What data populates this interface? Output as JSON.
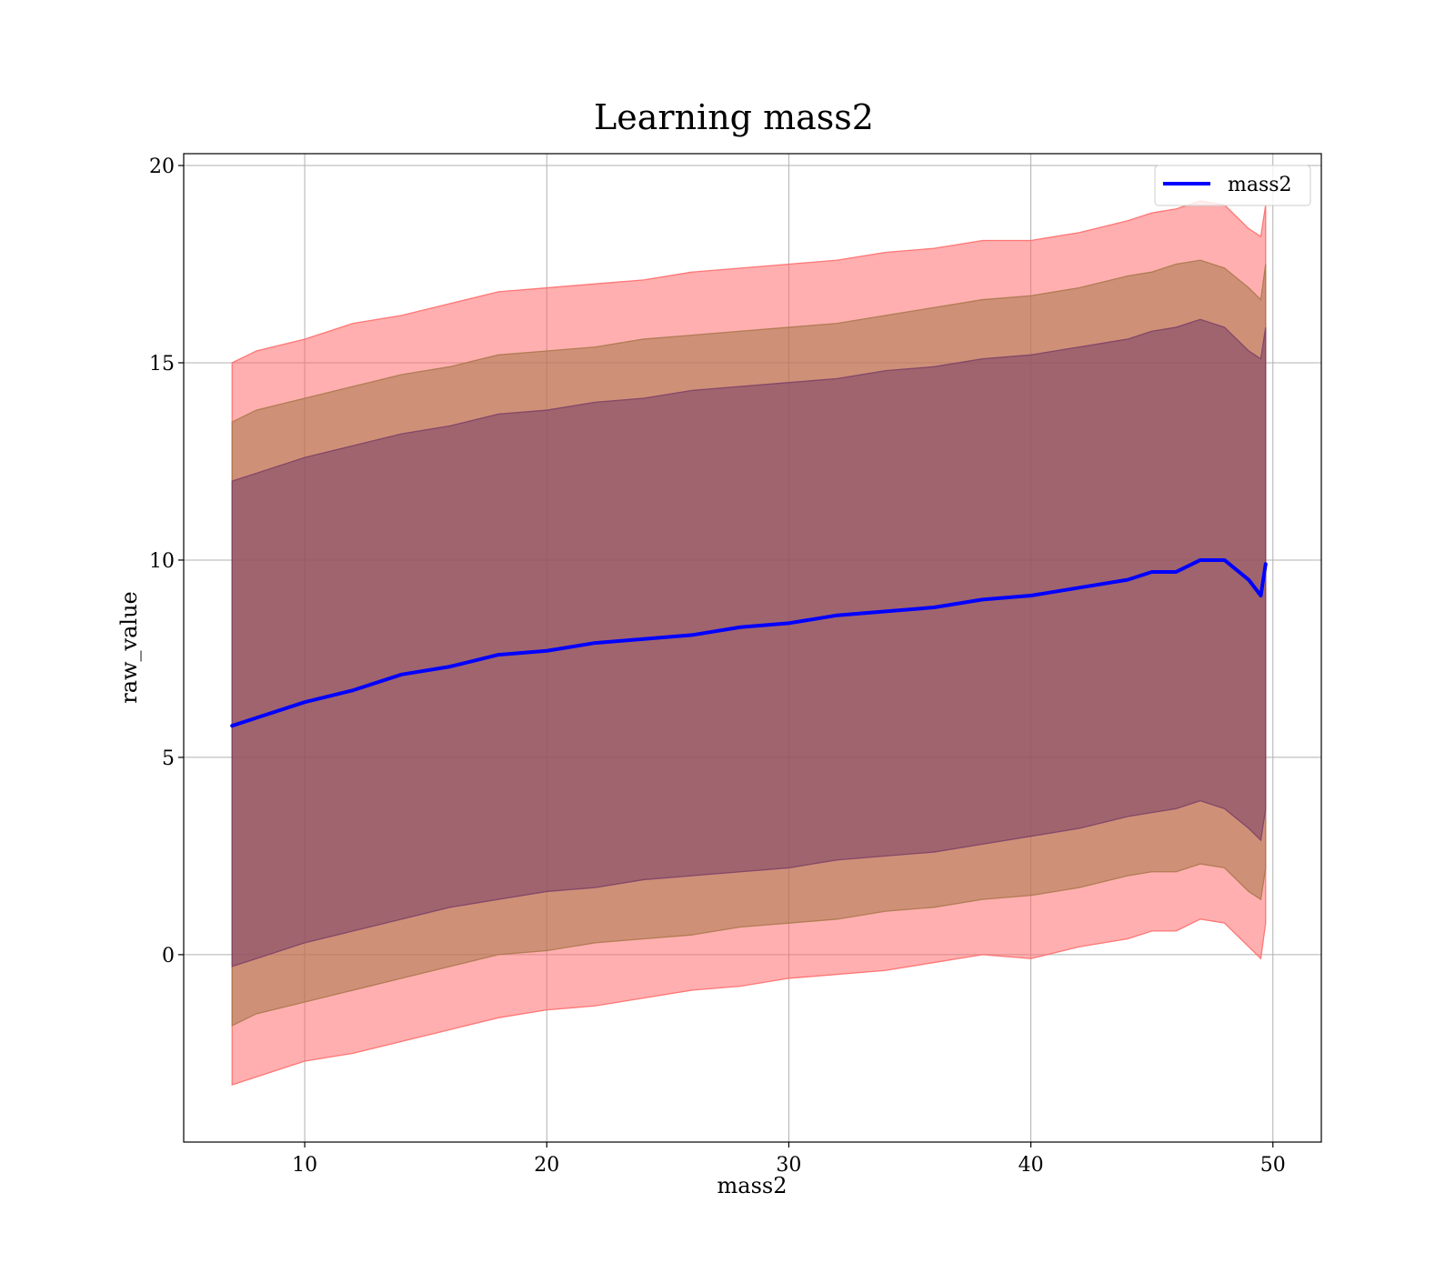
{
  "chart_data": {
    "type": "area",
    "title": "Learning mass2",
    "xlabel": "mass2",
    "ylabel": "raw_value",
    "xlim": [
      5,
      52
    ],
    "ylim": [
      -4.75,
      20.3
    ],
    "xticks": [
      10,
      20,
      30,
      40,
      50
    ],
    "yticks": [
      0,
      5,
      10,
      15,
      20
    ],
    "grid": true,
    "legend_position": "upper right",
    "x": [
      7.0,
      8.0,
      10.0,
      12.0,
      14.0,
      16.0,
      18.0,
      20.0,
      22.0,
      24.0,
      26.0,
      28.0,
      30.0,
      32.0,
      34.0,
      36.0,
      38.0,
      40.0,
      42.0,
      44.0,
      45.0,
      46.0,
      47.0,
      48.0,
      49.0,
      49.5,
      49.7
    ],
    "series": [
      {
        "name": "mass2",
        "color": "#0000ff",
        "values": [
          5.8,
          6.0,
          6.4,
          6.7,
          7.1,
          7.3,
          7.6,
          7.7,
          7.9,
          8.0,
          8.1,
          8.3,
          8.4,
          8.6,
          8.7,
          8.8,
          9.0,
          9.1,
          9.3,
          9.5,
          9.7,
          9.7,
          10.0,
          10.0,
          9.5,
          9.1,
          9.9
        ]
      }
    ],
    "bands": [
      {
        "label": "",
        "color": "#ff6666",
        "upper": [
          15.0,
          15.3,
          15.6,
          16.0,
          16.2,
          16.5,
          16.8,
          16.9,
          17.0,
          17.1,
          17.3,
          17.4,
          17.5,
          17.6,
          17.8,
          17.9,
          18.1,
          18.1,
          18.3,
          18.6,
          18.8,
          18.9,
          19.1,
          19.0,
          18.4,
          18.2,
          19.0
        ],
        "lower": [
          -3.3,
          -3.1,
          -2.7,
          -2.5,
          -2.2,
          -1.9,
          -1.6,
          -1.4,
          -1.3,
          -1.1,
          -0.9,
          -0.8,
          -0.6,
          -0.5,
          -0.4,
          -0.2,
          0.0,
          -0.1,
          0.2,
          0.4,
          0.6,
          0.6,
          0.9,
          0.8,
          0.2,
          -0.1,
          0.8
        ]
      },
      {
        "label": "",
        "color": "#a8774a",
        "upper": [
          13.5,
          13.8,
          14.1,
          14.4,
          14.7,
          14.9,
          15.2,
          15.3,
          15.4,
          15.6,
          15.7,
          15.8,
          15.9,
          16.0,
          16.2,
          16.4,
          16.6,
          16.7,
          16.9,
          17.2,
          17.3,
          17.5,
          17.6,
          17.4,
          16.9,
          16.6,
          17.5
        ],
        "lower": [
          -1.8,
          -1.5,
          -1.2,
          -0.9,
          -0.6,
          -0.3,
          0.0,
          0.1,
          0.3,
          0.4,
          0.5,
          0.7,
          0.8,
          0.9,
          1.1,
          1.2,
          1.4,
          1.5,
          1.7,
          2.0,
          2.1,
          2.1,
          2.3,
          2.2,
          1.6,
          1.4,
          2.2
        ]
      },
      {
        "label": "",
        "color": "#7a3f66",
        "upper": [
          12.0,
          12.2,
          12.6,
          12.9,
          13.2,
          13.4,
          13.7,
          13.8,
          14.0,
          14.1,
          14.3,
          14.4,
          14.5,
          14.6,
          14.8,
          14.9,
          15.1,
          15.2,
          15.4,
          15.6,
          15.8,
          15.9,
          16.1,
          15.9,
          15.3,
          15.1,
          15.9
        ],
        "lower": [
          -0.3,
          -0.1,
          0.3,
          0.6,
          0.9,
          1.2,
          1.4,
          1.6,
          1.7,
          1.9,
          2.0,
          2.1,
          2.2,
          2.4,
          2.5,
          2.6,
          2.8,
          3.0,
          3.2,
          3.5,
          3.6,
          3.7,
          3.9,
          3.7,
          3.2,
          2.9,
          3.7
        ]
      }
    ]
  }
}
